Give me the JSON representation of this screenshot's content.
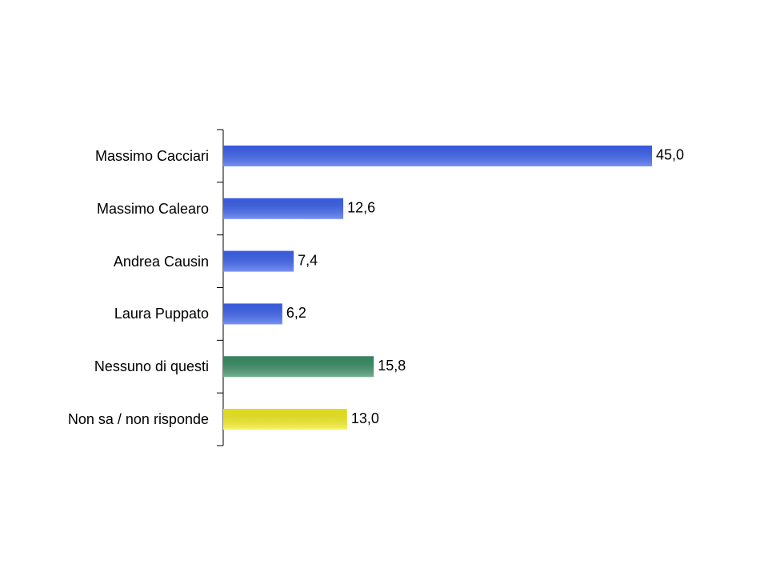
{
  "chart_data": {
    "type": "hbar",
    "categories": [
      "Massimo Cacciari",
      "Massimo Calearo",
      "Andrea Causin",
      "Laura Puppato",
      "Nessuno di questi",
      "Non sa / non risponde"
    ],
    "values": [
      45.0,
      12.6,
      7.4,
      6.2,
      15.8,
      13.0
    ],
    "value_labels": [
      "45,0",
      "12,6",
      "7,4",
      "6,2",
      "15,8",
      "13,0"
    ],
    "colors": [
      "#3d63f0",
      "#3d63f0",
      "#3d63f0",
      "#3d63f0",
      "#3a8f66",
      "#f5f020"
    ]
  }
}
